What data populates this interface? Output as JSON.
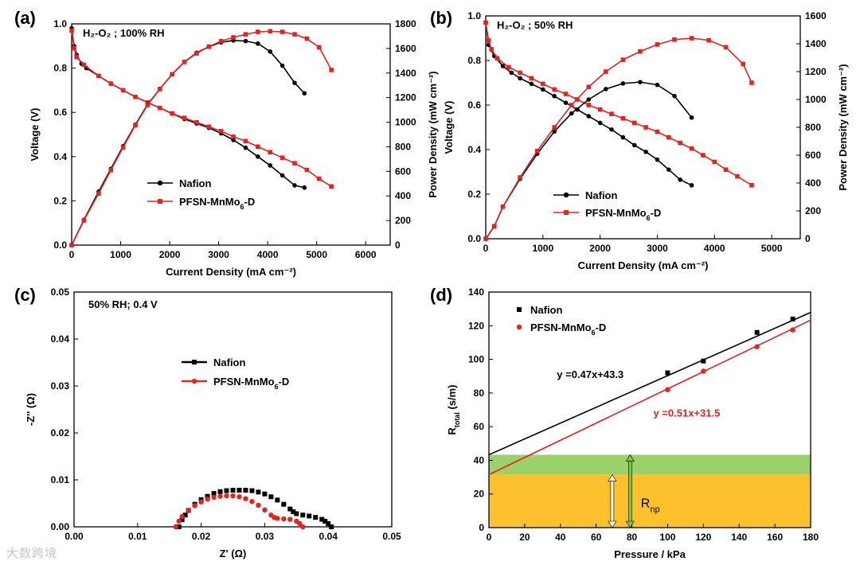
{
  "watermark": "大数跨境",
  "colors": {
    "nafion": "#000000",
    "pfsn": "#e8231f",
    "green_band": "#9bd16a",
    "orange_band": "#fcc12d"
  },
  "chart_data": [
    {
      "panel": "(a)",
      "type": "line",
      "annotation": "H₂-O₂ ; 100% RH",
      "xlabel": "Current Density (mA cm⁻²)",
      "ylabel": "Voltage (V)",
      "y2label": "Power Density (mW cm⁻²)",
      "xlim": [
        0,
        6500
      ],
      "ylim": [
        0,
        1.0
      ],
      "y2lim": [
        0,
        1800
      ],
      "xticks": [
        0,
        1000,
        2000,
        3000,
        4000,
        5000,
        6000
      ],
      "yticks": [
        0.0,
        0.2,
        0.4,
        0.6,
        0.8,
        1.0
      ],
      "y2ticks": [
        0,
        200,
        400,
        600,
        800,
        1000,
        1200,
        1400,
        1600,
        1800
      ],
      "legend": [
        "Nafion",
        "PFSN-MnMo₆-D"
      ],
      "series": [
        {
          "name": "Nafion",
          "axis": "voltage",
          "x": [
            0,
            50,
            100,
            200,
            300,
            550,
            800,
            1050,
            1300,
            1550,
            1800,
            2050,
            2300,
            2550,
            2800,
            3050,
            3300,
            3550,
            3800,
            4050,
            4300,
            4550,
            4750
          ],
          "y": [
            0.98,
            0.9,
            0.86,
            0.82,
            0.8,
            0.765,
            0.73,
            0.7,
            0.67,
            0.645,
            0.62,
            0.595,
            0.57,
            0.55,
            0.53,
            0.505,
            0.475,
            0.44,
            0.4,
            0.36,
            0.315,
            0.27,
            0.26
          ]
        },
        {
          "name": "PFSN-MnMo₆-D",
          "axis": "voltage",
          "x": [
            0,
            50,
            100,
            250,
            550,
            800,
            1050,
            1300,
            1550,
            1800,
            2050,
            2300,
            2550,
            2800,
            3050,
            3300,
            3550,
            3800,
            4050,
            4300,
            4550,
            4800,
            5050,
            5300
          ],
          "y": [
            0.97,
            0.89,
            0.85,
            0.815,
            0.765,
            0.73,
            0.7,
            0.67,
            0.645,
            0.62,
            0.595,
            0.575,
            0.555,
            0.535,
            0.515,
            0.49,
            0.47,
            0.445,
            0.42,
            0.395,
            0.37,
            0.34,
            0.3,
            0.265
          ]
        },
        {
          "name": "Nafion",
          "axis": "power",
          "x": [
            0,
            250,
            550,
            800,
            1050,
            1300,
            1550,
            1800,
            2050,
            2300,
            2550,
            2800,
            3050,
            3300,
            3550,
            3800,
            4050,
            4300,
            4550,
            4750
          ],
          "y": [
            0,
            205,
            435,
            620,
            805,
            980,
            1145,
            1270,
            1390,
            1490,
            1565,
            1615,
            1650,
            1665,
            1660,
            1640,
            1575,
            1460,
            1320,
            1235
          ]
        },
        {
          "name": "PFSN-MnMo₆-D",
          "axis": "power",
          "x": [
            0,
            250,
            550,
            800,
            1050,
            1300,
            1550,
            1800,
            2050,
            2300,
            2550,
            2800,
            3050,
            3300,
            3550,
            3800,
            4050,
            4300,
            4550,
            4800,
            5050,
            5300
          ],
          "y": [
            0,
            200,
            420,
            610,
            795,
            975,
            1140,
            1270,
            1390,
            1490,
            1560,
            1615,
            1660,
            1690,
            1715,
            1735,
            1740,
            1735,
            1715,
            1680,
            1610,
            1425
          ]
        }
      ]
    },
    {
      "panel": "(b)",
      "type": "line",
      "annotation": "H₂-O₂ ; 50% RH",
      "xlabel": "Current Density (mA cm⁻²)",
      "ylabel": "Voltage (V)",
      "y2label": "Power Density (mW cm⁻²)",
      "xlim": [
        0,
        5500
      ],
      "ylim": [
        0,
        1.0
      ],
      "y2lim": [
        0,
        1600
      ],
      "xticks": [
        0,
        1000,
        2000,
        3000,
        4000,
        5000
      ],
      "yticks": [
        0.0,
        0.2,
        0.4,
        0.6,
        0.8,
        1.0
      ],
      "y2ticks": [
        0,
        200,
        400,
        600,
        800,
        1000,
        1200,
        1400,
        1600
      ],
      "legend": [
        "Nafion",
        "PFSN-MnMo₆-D"
      ],
      "series": [
        {
          "name": "Nafion",
          "axis": "voltage",
          "x": [
            0,
            50,
            150,
            300,
            450,
            600,
            800,
            1000,
            1200,
            1400,
            1600,
            1800,
            2000,
            2200,
            2400,
            2600,
            2800,
            3000,
            3200,
            3400,
            3600
          ],
          "y": [
            0.97,
            0.87,
            0.82,
            0.775,
            0.745,
            0.72,
            0.695,
            0.67,
            0.64,
            0.61,
            0.58,
            0.55,
            0.52,
            0.49,
            0.455,
            0.42,
            0.39,
            0.355,
            0.31,
            0.265,
            0.24
          ]
        },
        {
          "name": "PFSN-MnMo₆-D",
          "axis": "voltage",
          "x": [
            0,
            50,
            100,
            200,
            400,
            600,
            800,
            1000,
            1200,
            1400,
            1600,
            1800,
            2000,
            2200,
            2400,
            2600,
            2800,
            3000,
            3200,
            3400,
            3600,
            3800,
            4000,
            4200,
            4400,
            4650
          ],
          "y": [
            0.97,
            0.89,
            0.85,
            0.81,
            0.77,
            0.745,
            0.72,
            0.695,
            0.67,
            0.65,
            0.625,
            0.6,
            0.58,
            0.56,
            0.54,
            0.52,
            0.5,
            0.48,
            0.455,
            0.43,
            0.405,
            0.375,
            0.345,
            0.31,
            0.28,
            0.24
          ]
        },
        {
          "name": "Nafion",
          "axis": "power",
          "x": [
            0,
            150,
            300,
            600,
            900,
            1200,
            1500,
            1800,
            2100,
            2400,
            2700,
            3000,
            3300,
            3600
          ],
          "y": [
            0,
            90,
            230,
            430,
            610,
            770,
            900,
            1000,
            1075,
            1115,
            1125,
            1105,
            1025,
            870
          ]
        },
        {
          "name": "PFSN-MnMo₆-D",
          "axis": "power",
          "x": [
            0,
            150,
            300,
            600,
            900,
            1200,
            1500,
            1800,
            2100,
            2400,
            2700,
            3000,
            3300,
            3600,
            3900,
            4200,
            4500,
            4650
          ],
          "y": [
            0,
            90,
            230,
            440,
            630,
            800,
            960,
            1090,
            1200,
            1285,
            1345,
            1395,
            1430,
            1440,
            1425,
            1375,
            1255,
            1120
          ]
        }
      ]
    },
    {
      "panel": "(c)",
      "type": "scatter",
      "annotation": "50% RH; 0.4 V",
      "xlabel": "Z' (Ω)",
      "ylabel": "-Z'' (Ω)",
      "xlim": [
        0,
        0.05
      ],
      "ylim": [
        0,
        0.05
      ],
      "xticks": [
        0.0,
        0.01,
        0.02,
        0.03,
        0.04,
        0.05
      ],
      "yticks": [
        0.0,
        0.01,
        0.02,
        0.03,
        0.04,
        0.05
      ],
      "legend": [
        "Nafion",
        "PFSN-MnMo₆-D"
      ],
      "series": [
        {
          "name": "Nafion",
          "x": [
            0.0165,
            0.017,
            0.0175,
            0.018,
            0.019,
            0.02,
            0.021,
            0.022,
            0.023,
            0.024,
            0.025,
            0.026,
            0.027,
            0.028,
            0.029,
            0.03,
            0.031,
            0.032,
            0.033,
            0.034,
            0.0345,
            0.035,
            0.036,
            0.037,
            0.038,
            0.039,
            0.0395,
            0.04,
            0.0405
          ],
          "y": [
            0.0,
            0.0015,
            0.0025,
            0.0035,
            0.0048,
            0.0058,
            0.0065,
            0.0071,
            0.0075,
            0.0077,
            0.0078,
            0.0078,
            0.0078,
            0.0077,
            0.0074,
            0.007,
            0.0064,
            0.0057,
            0.0048,
            0.0038,
            0.0032,
            0.0028,
            0.0025,
            0.0023,
            0.002,
            0.0016,
            0.0012,
            0.0007,
            0.0
          ]
        },
        {
          "name": "PFSN-MnMo₆-D",
          "x": [
            0.016,
            0.0165,
            0.017,
            0.018,
            0.019,
            0.02,
            0.021,
            0.022,
            0.023,
            0.024,
            0.025,
            0.026,
            0.027,
            0.028,
            0.029,
            0.03,
            0.031,
            0.0315,
            0.032,
            0.033,
            0.034,
            0.035,
            0.0355,
            0.036
          ],
          "y": [
            0.0,
            0.0012,
            0.0022,
            0.0035,
            0.0045,
            0.0053,
            0.0059,
            0.0063,
            0.0065,
            0.0066,
            0.0066,
            0.0064,
            0.006,
            0.0054,
            0.0046,
            0.0036,
            0.0025,
            0.002,
            0.0018,
            0.0017,
            0.0016,
            0.0012,
            0.0007,
            0.0
          ]
        }
      ]
    },
    {
      "panel": "(d)",
      "type": "scatter",
      "xlabel": "Pressure / kPa",
      "ylabel": "R",
      "ylabel_sub": "total",
      "ylabel_suffix": " (s/m)",
      "xlim": [
        0,
        180
      ],
      "ylim": [
        0,
        140
      ],
      "xticks": [
        0,
        20,
        40,
        60,
        80,
        100,
        120,
        140,
        160,
        180
      ],
      "yticks": [
        0,
        20,
        40,
        60,
        80,
        100,
        120,
        140
      ],
      "legend": [
        "Nafion",
        "PFSN-MnMo₆-D"
      ],
      "series": [
        {
          "name": "Nafion",
          "x": [
            100,
            120,
            150,
            170
          ],
          "y": [
            92,
            99,
            116,
            124
          ],
          "fit": {
            "slope": 0.47,
            "intercept": 43.3,
            "label": "y =0.47x+43.3"
          }
        },
        {
          "name": "PFSN-MnMo₆-D",
          "x": [
            100,
            120,
            150,
            170
          ],
          "y": [
            82,
            93,
            107.5,
            117.5
          ],
          "fit": {
            "slope": 0.51,
            "intercept": 31.5,
            "label": "y =0.51x+31.5"
          }
        }
      ],
      "bands": [
        {
          "from": 31.5,
          "to": 43.3,
          "color": "#9bd16a"
        },
        {
          "from": 0,
          "to": 31.5,
          "color": "#fcc12d"
        }
      ],
      "rnp_label": "R",
      "rnp_sub": "np"
    }
  ]
}
